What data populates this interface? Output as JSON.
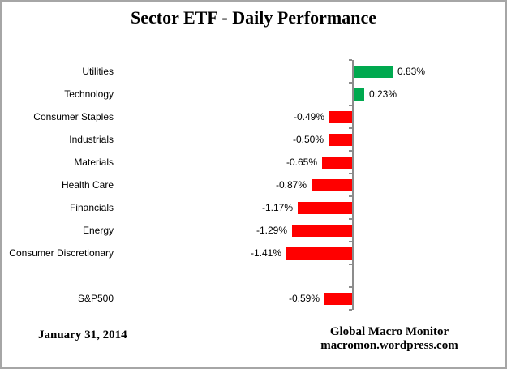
{
  "chart_data": {
    "type": "bar",
    "orientation": "horizontal",
    "title": "Sector ETF - Daily Performance",
    "unit": "percent",
    "categories": [
      "Utilities",
      "Technology",
      "Consumer Staples",
      "Industrials",
      "Materials",
      "Health Care",
      "Financials",
      "Energy",
      "Consumer Discretionary"
    ],
    "values": [
      0.83,
      0.23,
      -0.49,
      -0.5,
      -0.65,
      -0.87,
      -1.17,
      -1.29,
      -1.41
    ],
    "value_labels": [
      "0.83%",
      "0.23%",
      "-0.49%",
      "-0.50%",
      "-0.65%",
      "-0.87%",
      "-1.17%",
      "-1.29%",
      "-1.41%"
    ],
    "benchmark": {
      "category": "S&P500",
      "value": -0.59,
      "value_label": "-0.59%"
    },
    "positive_color": "#00a94f",
    "negative_color": "#ff0000",
    "axis_color": "#8c8c8c",
    "xlim": [
      -1.5,
      1.0
    ],
    "grid": false,
    "legend": false
  },
  "footer": {
    "date": "January 31, 2014",
    "credit_line1": "Global Macro Monitor",
    "credit_line2": "macromon.wordpress.com"
  }
}
